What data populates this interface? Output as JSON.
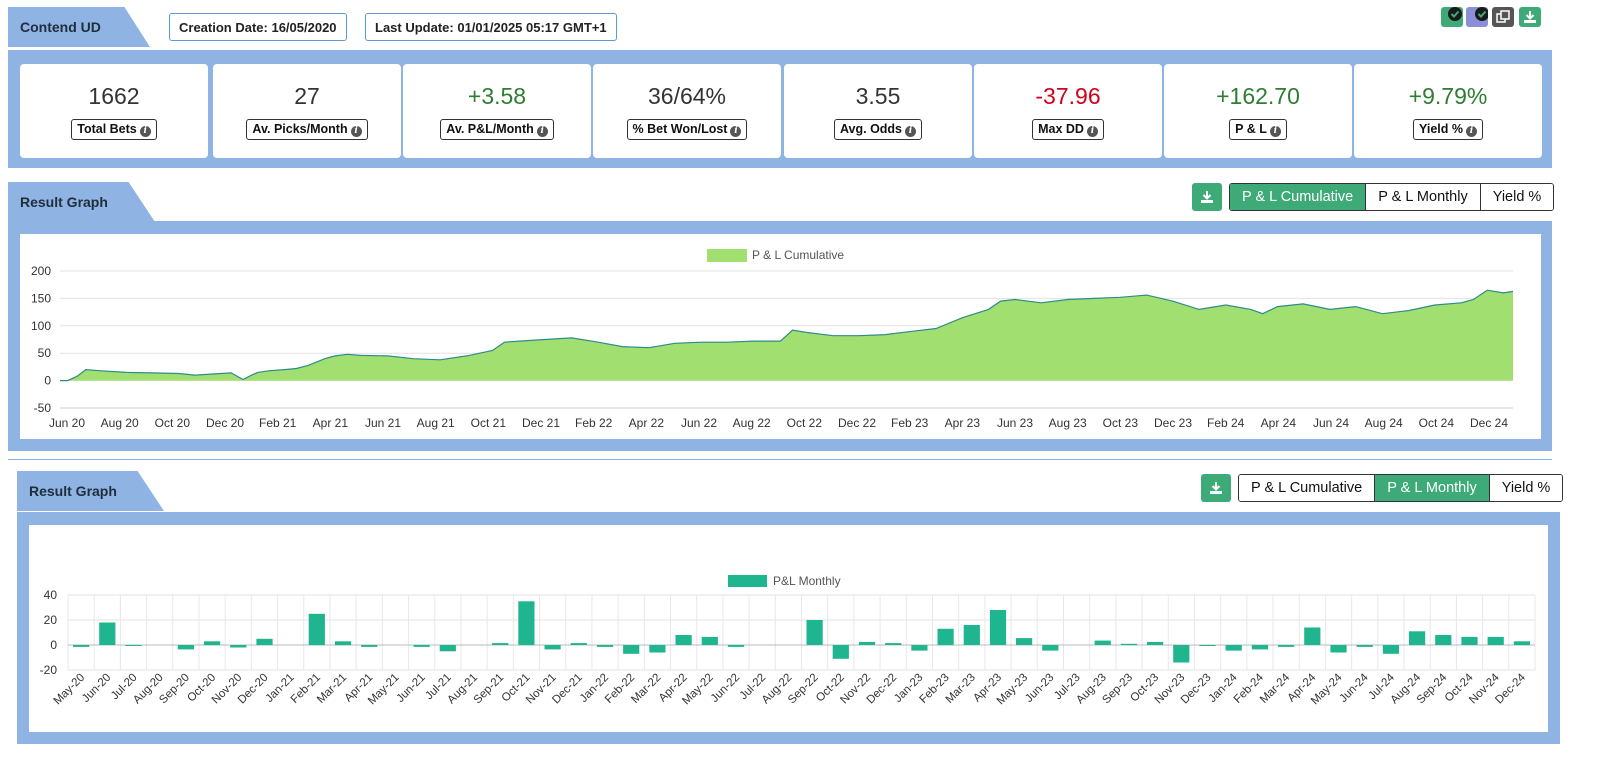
{
  "header": {
    "title": "Contend UD",
    "creation_date": "Creation Date: 16/05/2020",
    "last_update": "Last Update: 01/01/2025 05:17 GMT+1"
  },
  "top_icons": [
    "check-icon",
    "check-icon",
    "copy-icon",
    "download-icon"
  ],
  "stats": [
    {
      "value": "1662",
      "label": "Total Bets",
      "tone": "neutral"
    },
    {
      "value": "27",
      "label": "Av. Picks/Month",
      "tone": "neutral"
    },
    {
      "value": "+3.58",
      "label": "Av. P&L/Month",
      "tone": "pos"
    },
    {
      "value": "36/64%",
      "label": "% Bet Won/Lost",
      "tone": "neutral"
    },
    {
      "value": "3.55",
      "label": "Avg. Odds",
      "tone": "neutral"
    },
    {
      "value": "-37.96",
      "label": "Max DD",
      "tone": "neg"
    },
    {
      "value": "+162.70",
      "label": "P & L",
      "tone": "pos"
    },
    {
      "value": "+9.79%",
      "label": "Yield %",
      "tone": "pos"
    }
  ],
  "graph1": {
    "title": "Result Graph",
    "toggles": [
      "P & L Cumulative",
      "P & L Monthly",
      "Yield %"
    ],
    "active": 0
  },
  "graph2": {
    "title": "Result Graph",
    "toggles": [
      "P & L Cumulative",
      "P & L Monthly",
      "Yield %"
    ],
    "active": 1
  },
  "colors": {
    "accent": "#3daa78",
    "panel": "#8fb4e3",
    "area_fill": "#a1e070",
    "area_line": "#2e8b8b",
    "bar": "#1fb58f",
    "negative": "#d0021b",
    "positive": "#2e7d32"
  },
  "chart_data": [
    {
      "type": "area",
      "legend": "P & L Cumulative",
      "legend_position": "top-center",
      "grid": true,
      "ylim": [
        -50,
        200
      ],
      "yticks": [
        200,
        150,
        100,
        50,
        0,
        -50
      ],
      "x_tick_labels": [
        "Jun 20",
        "Aug 20",
        "Oct 20",
        "Dec 20",
        "Feb 21",
        "Apr 21",
        "Jun 21",
        "Aug 21",
        "Oct 21",
        "Dec 21",
        "Feb 22",
        "Apr 22",
        "Jun 22",
        "Aug 22",
        "Oct 22",
        "Dec 22",
        "Feb 23",
        "Apr 23",
        "Jun 23",
        "Aug 23",
        "Oct 23",
        "Dec 23",
        "Feb 24",
        "Apr 24",
        "Jun 24",
        "Aug 24",
        "Oct 24",
        "Dec 24"
      ],
      "x": [
        "2020-05-16",
        "2020-05-25",
        "2020-06-05",
        "2020-06-15",
        "2020-07-01",
        "2020-08-01",
        "2020-09-01",
        "2020-10-01",
        "2020-10-20",
        "2020-11-10",
        "2020-12-01",
        "2020-12-15",
        "2020-12-25",
        "2021-01-01",
        "2021-01-15",
        "2021-02-01",
        "2021-02-15",
        "2021-03-01",
        "2021-03-20",
        "2021-04-01",
        "2021-04-15",
        "2021-05-01",
        "2021-06-01",
        "2021-07-01",
        "2021-08-01",
        "2021-09-01",
        "2021-10-01",
        "2021-10-15",
        "2021-11-01",
        "2021-12-01",
        "2022-01-01",
        "2022-02-01",
        "2022-03-01",
        "2022-04-01",
        "2022-05-01",
        "2022-06-01",
        "2022-07-01",
        "2022-08-01",
        "2022-09-01",
        "2022-09-15",
        "2022-10-01",
        "2022-11-01",
        "2022-12-01",
        "2023-01-01",
        "2023-02-01",
        "2023-03-01",
        "2023-04-01",
        "2023-05-01",
        "2023-05-15",
        "2023-06-01",
        "2023-07-01",
        "2023-08-01",
        "2023-09-01",
        "2023-10-01",
        "2023-11-01",
        "2023-12-01",
        "2024-01-01",
        "2024-02-01",
        "2024-03-01",
        "2024-03-15",
        "2024-04-01",
        "2024-05-01",
        "2024-06-01",
        "2024-07-01",
        "2024-08-01",
        "2024-09-01",
        "2024-10-01",
        "2024-11-01",
        "2024-11-15",
        "2024-12-01",
        "2024-12-20",
        "2024-12-31"
      ],
      "y": [
        0,
        0,
        8,
        20,
        18,
        15,
        14,
        13,
        10,
        12,
        14,
        2,
        10,
        15,
        18,
        20,
        22,
        28,
        40,
        45,
        48,
        46,
        45,
        40,
        38,
        45,
        55,
        70,
        72,
        75,
        78,
        70,
        62,
        60,
        68,
        70,
        70,
        72,
        72,
        92,
        88,
        82,
        82,
        84,
        90,
        95,
        115,
        130,
        145,
        148,
        142,
        148,
        150,
        152,
        156,
        145,
        130,
        138,
        130,
        122,
        135,
        140,
        130,
        135,
        122,
        128,
        138,
        142,
        148,
        165,
        160,
        162.7
      ]
    },
    {
      "type": "bar",
      "legend": "P&L Monthly",
      "legend_position": "top-center",
      "grid": true,
      "ylim": [
        -20,
        40
      ],
      "yticks": [
        40,
        20,
        0,
        -20
      ],
      "categories": [
        "May-20",
        "Jun-20",
        "Jul-20",
        "Aug-20",
        "Sep-20",
        "Oct-20",
        "Nov-20",
        "Dec-20",
        "Jan-21",
        "Feb-21",
        "Mar-21",
        "Apr-21",
        "May-21",
        "Jun-21",
        "Jul-21",
        "Aug-21",
        "Sep-21",
        "Oct-21",
        "Nov-21",
        "Dec-21",
        "Jan-22",
        "Feb-22",
        "Mar-22",
        "Apr-22",
        "May-22",
        "Jun-22",
        "Jul-22",
        "Aug-22",
        "Sep-22",
        "Oct-22",
        "Nov-22",
        "Dec-22",
        "Jan-23",
        "Feb-23",
        "Mar-23",
        "Apr-23",
        "May-23",
        "Jun-23",
        "Jul-23",
        "Aug-23",
        "Sep-23",
        "Oct-23",
        "Nov-23",
        "Dec-23",
        "Jan-24",
        "Feb-24",
        "Mar-24",
        "Apr-24",
        "May-24",
        "Jun-24",
        "Jul-24",
        "Aug-24",
        "Sep-24",
        "Oct-24",
        "Nov-24",
        "Dec-24"
      ],
      "values": [
        -1.5,
        18,
        -0.5,
        0,
        -3.5,
        3,
        -2,
        5,
        0,
        25,
        3,
        -1.5,
        0,
        -1.5,
        -5,
        0,
        1.5,
        35,
        -3.5,
        1.5,
        -1.5,
        -7,
        -6,
        8,
        6.5,
        -1.5,
        0,
        0,
        20,
        -11,
        2.5,
        1.5,
        -4.5,
        13,
        16,
        28,
        5.5,
        -4.5,
        0,
        3.5,
        1,
        2.5,
        -14,
        -0.5,
        -4.5,
        -3.5,
        -1.5,
        14,
        -6,
        -1.5,
        -7,
        11,
        8,
        6.5,
        6.5,
        3
      ]
    }
  ]
}
